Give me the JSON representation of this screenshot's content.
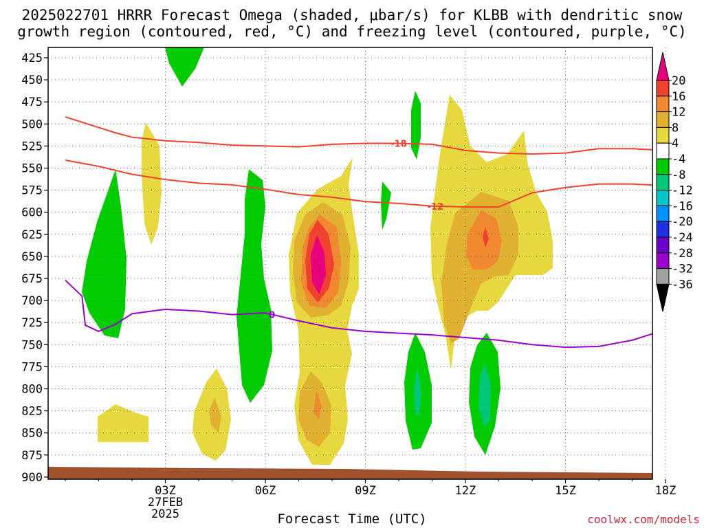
{
  "title_line1": "2025022701 HRRR Forecast Omega (shaded, μbar/s) for KLBB with dendritic snow",
  "title_line2": "growth region (contoured, red, °C) and freezing level (contoured, purple, °C)",
  "xlabel": "Forecast Time (UTC)",
  "credit": "coolwx.com/models",
  "date_label": [
    "27FEB",
    "2025"
  ],
  "chart_data": {
    "type": "contour",
    "title": "2025022701 HRRR Forecast Omega (shaded, μbar/s) for KLBB with dendritic snow growth region (contoured, red, °C) and freezing level (contoured, purple, °C)",
    "xlabel": "Forecast Time (UTC)",
    "ylabel": "",
    "x_ticks": [
      "03Z",
      "06Z",
      "09Z",
      "12Z",
      "15Z",
      "18Z"
    ],
    "y_ticks": [
      425,
      450,
      475,
      500,
      525,
      550,
      575,
      600,
      625,
      650,
      675,
      700,
      725,
      750,
      775,
      800,
      825,
      850,
      875,
      900
    ],
    "y_axis": "pressure (hPa), inverted",
    "colorbar_levels": [
      -36,
      -32,
      -28,
      -24,
      -20,
      -16,
      -12,
      -8,
      -4,
      4,
      8,
      12,
      16,
      20
    ],
    "colorbar_colors": [
      "#000000",
      "#a0a0a0",
      "#9900cc",
      "#6a00c8",
      "#2030e0",
      "#0090ff",
      "#00c8c8",
      "#00c878",
      "#00cc00",
      "#ffffff",
      "#e8d840",
      "#e0b030",
      "#f08830",
      "#f04030",
      "#e8007c"
    ],
    "contour_labels": [
      {
        "series": "dgz_-18C",
        "label": "-18",
        "color": "#f04030"
      },
      {
        "series": "dgz_-12C",
        "label": "-12",
        "color": "#f04030"
      },
      {
        "series": "freezing_level_0C",
        "label": "0",
        "color": "#9900cc"
      }
    ],
    "series": [
      {
        "name": "-18",
        "x": [
          0,
          0.5,
          1,
          1.5,
          2,
          3,
          4,
          5,
          6,
          7,
          8,
          9,
          10,
          11,
          12,
          13,
          14,
          15,
          16,
          17,
          18,
          19
        ],
        "y": [
          492,
          498,
          504,
          510,
          515,
          519,
          521,
          524,
          525,
          526,
          523,
          522,
          522,
          523,
          530,
          533,
          534,
          533,
          528,
          528,
          530,
          532
        ]
      },
      {
        "name": "-12",
        "x": [
          0,
          1,
          2,
          3,
          4,
          5,
          6,
          7,
          8,
          9,
          10,
          11,
          12,
          13,
          14,
          15,
          16,
          17,
          18,
          19
        ],
        "y": [
          541,
          548,
          557,
          563,
          567,
          569,
          574,
          580,
          583,
          588,
          590,
          593,
          594,
          594,
          578,
          572,
          568,
          568,
          570,
          575
        ]
      },
      {
        "name": "0",
        "x": [
          0,
          0.5,
          0.6,
          1,
          1.5,
          2,
          3,
          4,
          5,
          6,
          7,
          8,
          9,
          10,
          11,
          12,
          13,
          14,
          15,
          16,
          17,
          18,
          18.4,
          18.8,
          19
        ],
        "y": [
          677,
          695,
          728,
          735,
          727,
          715,
          710,
          712,
          716,
          714,
          723,
          731,
          735,
          737,
          739,
          742,
          745,
          750,
          753,
          752,
          745,
          733,
          748,
          758,
          764
        ]
      }
    ]
  }
}
